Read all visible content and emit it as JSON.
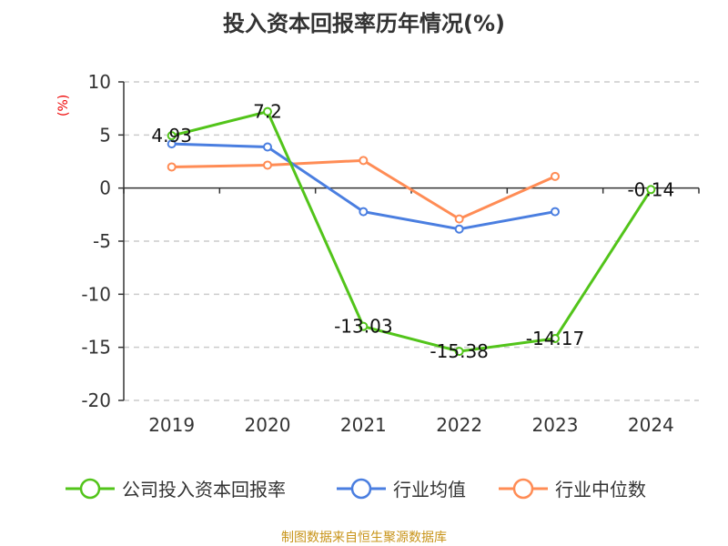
{
  "chart_data": {
    "type": "line",
    "title": "投入资本回报率历年情况(%)",
    "ylabel": "(%)",
    "categories": [
      "2019",
      "2020",
      "2021",
      "2022",
      "2023",
      "2024"
    ],
    "ylim": [
      -20,
      10
    ],
    "yticks": [
      10,
      5,
      0,
      -5,
      -10,
      -15,
      -20
    ],
    "grid": true,
    "legend_position": "bottom",
    "series": [
      {
        "name": "公司投入资本回报率",
        "color": "#52c41a",
        "values": [
          4.93,
          7.2,
          -13.03,
          -15.38,
          -14.17,
          -0.14
        ],
        "labels": [
          "4.93",
          "7.2",
          "-13.03",
          "-15.38",
          "-14.17",
          "-0.14"
        ]
      },
      {
        "name": "行业均值",
        "color": "#4a7ee0",
        "values": [
          4.16,
          3.87,
          -2.22,
          -3.86,
          -2.22,
          null
        ]
      },
      {
        "name": "行业中位数",
        "color": "#ff8c55",
        "values": [
          1.99,
          2.16,
          2.6,
          -2.91,
          1.1,
          null
        ]
      }
    ]
  },
  "source": "制图数据来自恒生聚源数据库"
}
